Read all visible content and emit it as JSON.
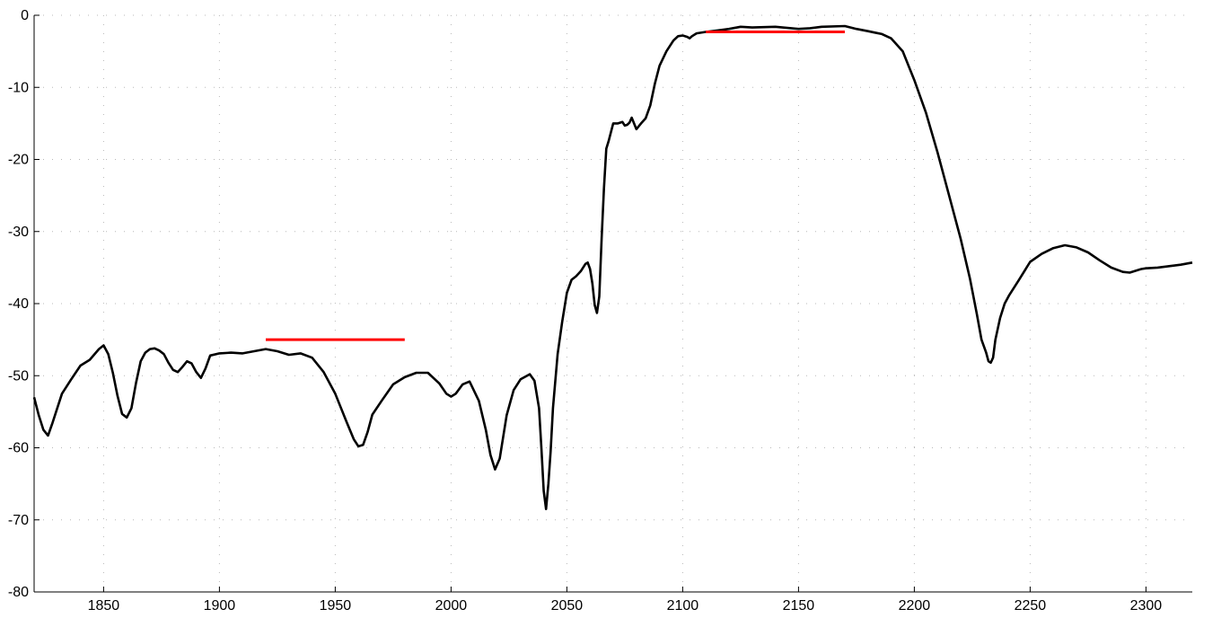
{
  "chart_data": {
    "type": "line",
    "title": "",
    "xlabel": "",
    "ylabel": "",
    "xlim": [
      1820,
      2320
    ],
    "ylim": [
      -80,
      0
    ],
    "grid": true,
    "x_ticks": [
      1850,
      1900,
      1950,
      2000,
      2050,
      2100,
      2150,
      2200,
      2250,
      2300
    ],
    "x_tick_labels": [
      "1850",
      "1900",
      "1950",
      "2000",
      "2050",
      "2100",
      "2150",
      "2200",
      "2250",
      "2300"
    ],
    "y_ticks": [
      0,
      -10,
      -20,
      -30,
      -40,
      -50,
      -60,
      -70,
      -80
    ],
    "y_tick_labels": [
      "0",
      "-10",
      "-20",
      "-30",
      "-40",
      "-50",
      "-60",
      "-70",
      "-80"
    ],
    "series": [
      {
        "color": "#000000",
        "x": [
          1820,
          1822,
          1824,
          1826,
          1828,
          1832,
          1836,
          1840,
          1844,
          1848,
          1850,
          1852,
          1854,
          1856,
          1858,
          1860,
          1862,
          1864,
          1866,
          1868,
          1870,
          1872,
          1874,
          1876,
          1878,
          1880,
          1882,
          1884,
          1886,
          1888,
          1890,
          1892,
          1894,
          1896,
          1900,
          1905,
          1910,
          1915,
          1920,
          1925,
          1930,
          1935,
          1940,
          1945,
          1950,
          1955,
          1958,
          1960,
          1962,
          1964,
          1966,
          1970,
          1975,
          1980,
          1985,
          1990,
          1995,
          1998,
          2000,
          2002,
          2005,
          2008,
          2012,
          2015,
          2017,
          2019,
          2021,
          2024,
          2027,
          2030,
          2034,
          2036,
          2038,
          2039,
          2040,
          2041,
          2042,
          2043,
          2044,
          2046,
          2048,
          2050,
          2052,
          2054,
          2056,
          2058,
          2059,
          2060,
          2061,
          2062,
          2063,
          2064,
          2065,
          2066,
          2067,
          2068,
          2070,
          2072,
          2074,
          2075,
          2076,
          2077,
          2078,
          2079,
          2080,
          2082,
          2084,
          2086,
          2088,
          2090,
          2093,
          2096,
          2098,
          2100,
          2102,
          2103,
          2104,
          2106,
          2110,
          2115,
          2120,
          2125,
          2130,
          2140,
          2150,
          2155,
          2160,
          2170,
          2175,
          2180,
          2183,
          2186,
          2190,
          2195,
          2200,
          2205,
          2210,
          2215,
          2220,
          2224,
          2227,
          2229,
          2231,
          2232,
          2233,
          2234,
          2235,
          2237,
          2239,
          2241,
          2245,
          2250,
          2255,
          2260,
          2265,
          2270,
          2275,
          2280,
          2285,
          2290,
          2293,
          2295,
          2298,
          2300,
          2305,
          2310,
          2315,
          2320
        ],
        "y": [
          -53,
          -55.5,
          -57.5,
          -58.3,
          -56.5,
          -52.5,
          -50.5,
          -48.6,
          -47.8,
          -46.3,
          -45.8,
          -47,
          -49.6,
          -52.8,
          -55.3,
          -55.8,
          -54.5,
          -51,
          -48,
          -46.8,
          -46.3,
          -46.2,
          -46.5,
          -47,
          -48.2,
          -49.2,
          -49.5,
          -48.8,
          -48,
          -48.3,
          -49.5,
          -50.3,
          -49,
          -47.2,
          -46.9,
          -46.8,
          -46.9,
          -46.6,
          -46.3,
          -46.6,
          -47.1,
          -46.9,
          -47.5,
          -49.5,
          -52.5,
          -56.5,
          -58.8,
          -59.8,
          -59.6,
          -57.8,
          -55.4,
          -53.5,
          -51.2,
          -50.2,
          -49.6,
          -49.6,
          -51.1,
          -52.5,
          -52.9,
          -52.5,
          -51.2,
          -50.8,
          -53.5,
          -57.5,
          -61,
          -63,
          -61.5,
          -55.5,
          -52,
          -50.5,
          -49.8,
          -50.7,
          -54.5,
          -60,
          -66,
          -68.5,
          -65,
          -60.5,
          -54.5,
          -47,
          -42.5,
          -38.5,
          -36.7,
          -36.2,
          -35.5,
          -34.5,
          -34.3,
          -35.2,
          -37.2,
          -40.2,
          -41.3,
          -39,
          -31,
          -24,
          -18.5,
          -17.5,
          -15,
          -15,
          -14.8,
          -15.3,
          -15.2,
          -14.9,
          -14.2,
          -15,
          -15.8,
          -15,
          -14.3,
          -12.5,
          -9.5,
          -7,
          -5,
          -3.5,
          -2.9,
          -2.8,
          -3,
          -3.2,
          -2.9,
          -2.5,
          -2.3,
          -2.1,
          -1.9,
          -1.6,
          -1.7,
          -1.6,
          -1.9,
          -1.8,
          -1.6,
          -1.5,
          -1.9,
          -2.2,
          -2.4,
          -2.6,
          -3.2,
          -5,
          -9,
          -13.5,
          -19,
          -25,
          -31,
          -36.5,
          -41.5,
          -45,
          -46.8,
          -48,
          -48.2,
          -47.5,
          -45,
          -42,
          -40,
          -38.8,
          -36.8,
          -34.2,
          -33.1,
          -32.3,
          -31.9,
          -32.2,
          -32.9,
          -34,
          -35,
          -35.6,
          -35.7,
          -35.5,
          -35.2,
          -35.1,
          -35,
          -34.8,
          -34.6,
          -34.3
        ]
      },
      {
        "color": "#ff0000",
        "x": [
          1920,
          1980
        ],
        "y": [
          -45,
          -45
        ]
      },
      {
        "color": "#ff0000",
        "x": [
          2110,
          2170
        ],
        "y": [
          -2.3,
          -2.3
        ]
      }
    ]
  }
}
